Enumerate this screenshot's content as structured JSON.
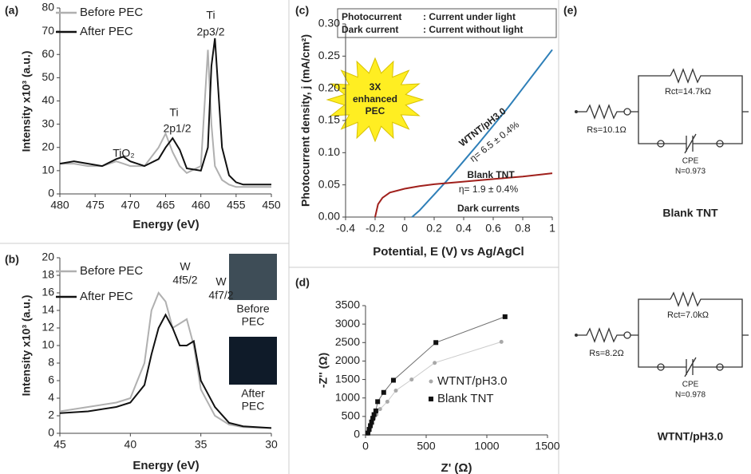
{
  "chart_data": [
    {
      "type": "line",
      "panel": "(a)",
      "x_label": "Energy (eV)",
      "y_label": "Intensity x10³ (a.u.)",
      "xlim": [
        480,
        450
      ],
      "xticks": [
        480,
        475,
        470,
        465,
        460,
        455,
        450
      ],
      "ylim": [
        0,
        80
      ],
      "yticks": [
        0,
        10,
        20,
        30,
        40,
        50,
        60,
        70,
        80
      ],
      "x": [
        480,
        478,
        476,
        474,
        472,
        471,
        470,
        468,
        466,
        465,
        464,
        463,
        462,
        460,
        459,
        458.5,
        458,
        457,
        456,
        455,
        454,
        452,
        450
      ],
      "series": [
        {
          "name": "Before PEC",
          "color": "#b0b0b0",
          "values": [
            13,
            13,
            12,
            12,
            14,
            13,
            12,
            12,
            20,
            26,
            18,
            12,
            9,
            12,
            62,
            30,
            12,
            6,
            4,
            3,
            3,
            3,
            3
          ]
        },
        {
          "name": "After PEC",
          "color": "#111111",
          "values": [
            13,
            14,
            13,
            12,
            15,
            16,
            14,
            12,
            15,
            20,
            24,
            19,
            11,
            10,
            20,
            55,
            67,
            20,
            8,
            5,
            4,
            4,
            4
          ]
        }
      ],
      "annotations": [
        "TiO₂",
        "Ti",
        "2p1/2",
        "Ti",
        "2p3/2"
      ]
    },
    {
      "type": "line",
      "panel": "(b)",
      "x_label": "Energy (eV)",
      "y_label": "Intensity x10³ (a.u.)",
      "xlim": [
        45,
        30
      ],
      "xticks": [
        45,
        40,
        35,
        30
      ],
      "ylim": [
        0,
        20
      ],
      "yticks": [
        0,
        2,
        4,
        6,
        8,
        10,
        12,
        14,
        16,
        18,
        20
      ],
      "x": [
        45,
        43,
        41,
        40,
        39,
        38.5,
        38,
        37.5,
        37,
        36.5,
        36,
        35.5,
        35,
        34,
        33,
        32,
        30
      ],
      "series": [
        {
          "name": "Before PEC",
          "color": "#b0b0b0",
          "values": [
            2.5,
            3,
            3.5,
            4,
            8,
            14,
            16,
            15,
            12,
            12.5,
            13,
            10,
            5,
            2,
            1,
            0.7,
            0.6
          ]
        },
        {
          "name": "After PEC",
          "color": "#111111",
          "values": [
            2.3,
            2.5,
            3,
            3.5,
            5.5,
            9,
            12,
            13.5,
            12,
            10,
            10,
            10.5,
            6,
            3,
            1.2,
            0.8,
            0.6
          ]
        }
      ],
      "annotations": [
        "W",
        "4f5/2",
        "W",
        "4f7/2",
        "Before",
        "PEC",
        "After",
        "PEC"
      ]
    },
    {
      "type": "line",
      "panel": "(c)",
      "x_label": "Potential, E (V) vs Ag/AgCl",
      "y_label": "Photocurrent density, j (mA/cm²)",
      "xlim": [
        -0.4,
        1
      ],
      "xticks": [
        -0.4,
        -0.2,
        0,
        0.2,
        0.4,
        0.6,
        0.8,
        1
      ],
      "ylim": [
        0,
        0.3
      ],
      "yticks": [
        {
          "value": 0,
          "label": "0.00"
        },
        {
          "value": 0.05,
          "label": "0.05"
        },
        {
          "value": 0.1,
          "label": "0.10"
        },
        {
          "value": 0.15,
          "label": "0.15"
        },
        {
          "value": 0.2,
          "label": "0.20"
        },
        {
          "value": 0.25,
          "label": "0.25"
        },
        {
          "value": 0.3,
          "label": "0.30"
        }
      ],
      "series": [
        {
          "name": "WTNT/pH3.0",
          "color": "#2e7fb8",
          "x": [
            0.05,
            0.1,
            0.2,
            0.3,
            0.4,
            0.5,
            0.6,
            0.7,
            0.8,
            0.9,
            1.0
          ],
          "values": [
            0,
            0.01,
            0.035,
            0.06,
            0.087,
            0.114,
            0.142,
            0.17,
            0.2,
            0.23,
            0.26
          ]
        },
        {
          "name": "Blank TNT",
          "color": "#a0201c",
          "x": [
            -0.2,
            -0.18,
            -0.15,
            -0.1,
            0,
            0.1,
            0.2,
            0.4,
            0.6,
            0.8,
            1.0
          ],
          "values": [
            0,
            0.02,
            0.03,
            0.038,
            0.044,
            0.048,
            0.051,
            0.055,
            0.059,
            0.063,
            0.068
          ]
        }
      ],
      "annotations": [
        "Photocurrent",
        ": Current under light",
        "Dark current",
        ": Current without light",
        "3X",
        "enhanced",
        "PEC",
        "η= 6.5 ± 0.4%",
        "η= 1.9 ± 0.4%",
        "Dark currents"
      ]
    },
    {
      "type": "scatter",
      "panel": "(d)",
      "x_label": "Z' (Ω)",
      "y_label": "-Z'' (Ω)",
      "xlim": [
        0,
        1500
      ],
      "xticks": [
        0,
        500,
        1000,
        1500
      ],
      "ylim": [
        0,
        3500
      ],
      "yticks": [
        0,
        500,
        1000,
        1500,
        2000,
        2500,
        3000,
        3500
      ],
      "series": [
        {
          "name": "WTNT/pH3.0",
          "color": "#a8a8a8",
          "x": [
            20,
            30,
            40,
            55,
            70,
            90,
            120,
            180,
            250,
            380,
            570,
            1120
          ],
          "values": [
            30,
            100,
            200,
            300,
            450,
            550,
            700,
            900,
            1200,
            1500,
            1950,
            2520
          ]
        },
        {
          "name": "Blank TNT",
          "color": "#111111",
          "x": [
            20,
            30,
            40,
            50,
            60,
            70,
            85,
            100,
            150,
            230,
            580,
            1150
          ],
          "values": [
            50,
            150,
            250,
            350,
            450,
            550,
            650,
            900,
            1150,
            1480,
            2500,
            3200
          ]
        }
      ]
    }
  ],
  "circuits": {
    "panel": "(e)",
    "items": [
      {
        "rs": "Rs=10.1Ω",
        "rct": "Rct=14.7kΩ",
        "cpe": "CPE",
        "n": "N=0.973",
        "title": "Blank TNT"
      },
      {
        "rs": "Rs=8.2Ω",
        "rct": "Rct=7.0kΩ",
        "cpe": "CPE",
        "n": "N=0.978",
        "title": "WTNT/pH3.0"
      }
    ]
  }
}
